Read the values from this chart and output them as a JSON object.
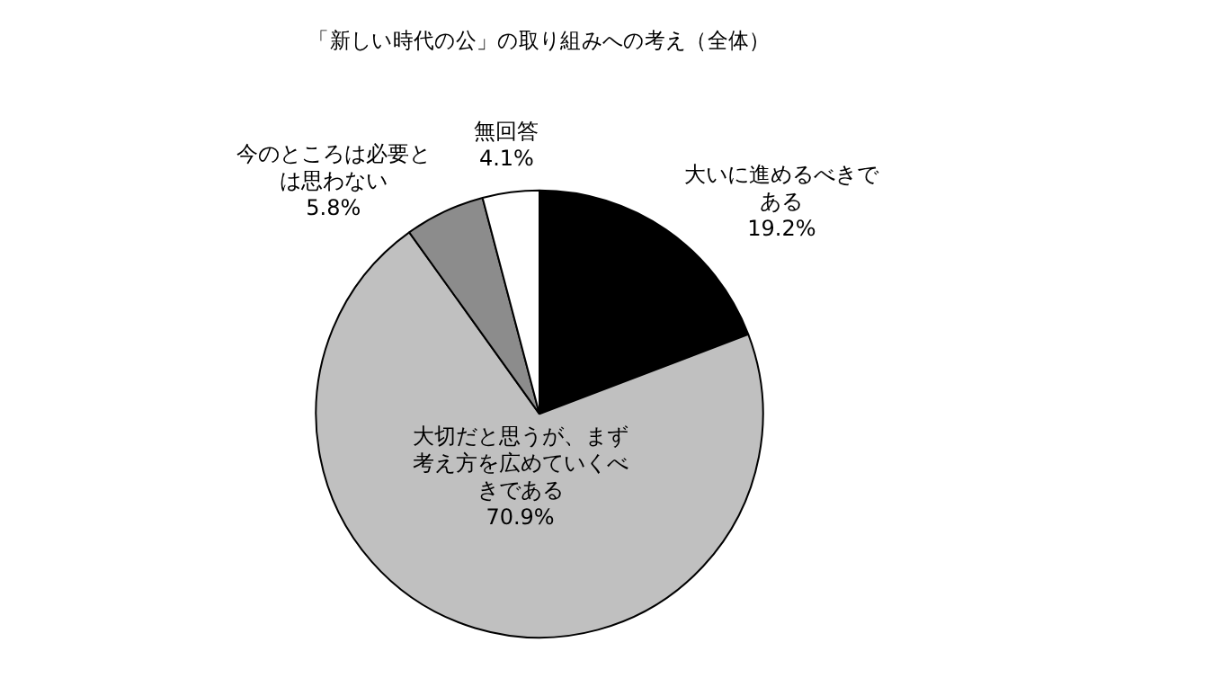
{
  "chart_data": {
    "type": "pie",
    "title": "「新しい時代の公」の取り組みへの考え（全体）",
    "categories": [
      "大いに進めるべきである",
      "大切だと思うが、まず考え方を広めていくべきである",
      "今のところは必要とは思わない",
      "無回答"
    ],
    "values": [
      19.2,
      70.9,
      5.8,
      4.1
    ],
    "colors": [
      "#000000",
      "#c0c0c0",
      "#8c8c8c",
      "#ffffff"
    ],
    "value_labels": [
      "19.2%",
      "70.9%",
      "5.8%",
      "4.1%"
    ],
    "legend": false
  }
}
